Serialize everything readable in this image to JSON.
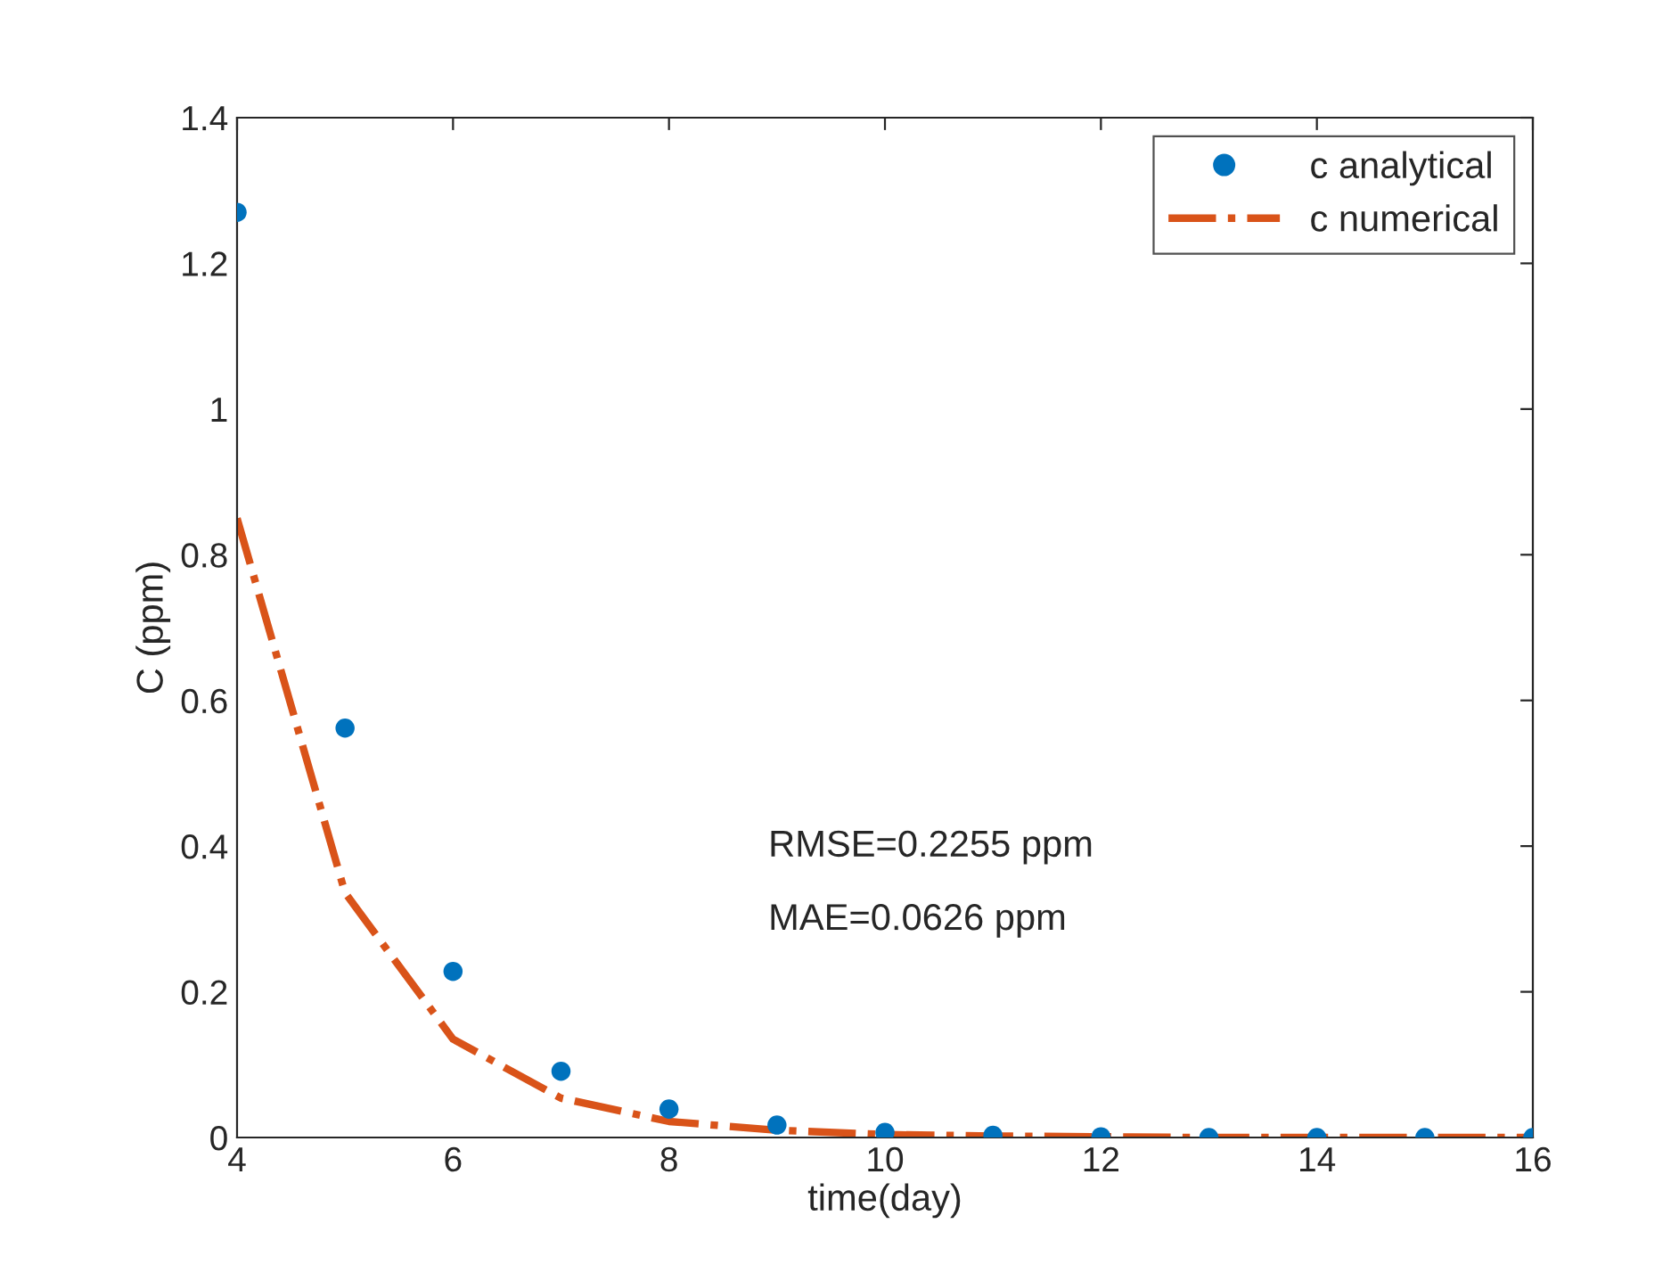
{
  "chart_data": {
    "type": "scatter",
    "xlabel": "time(day)",
    "ylabel": "C (ppm)",
    "x": [
      4,
      5,
      6,
      7,
      8,
      9,
      10,
      11,
      12,
      13,
      14,
      15,
      16
    ],
    "series": [
      {
        "name": "c analytical",
        "color": "#0072bd",
        "marker": "circle",
        "values": [
          1.27,
          0.562,
          0.228,
          0.091,
          0.039,
          0.017,
          0.007,
          0.003,
          0.001,
          0.0,
          0.0,
          0.0,
          0.0
        ]
      },
      {
        "name": "c numerical",
        "type": "line",
        "color": "#d95319",
        "line_style": "dashdot",
        "marker": "none",
        "values": [
          0.85,
          0.336,
          0.135,
          0.054,
          0.022,
          0.01,
          0.004,
          0.002,
          0.001,
          0.0,
          0.0,
          0.0,
          0.0
        ]
      }
    ],
    "xlim": [
      4,
      16
    ],
    "xticks": [
      4,
      6,
      8,
      10,
      12,
      14,
      16
    ],
    "ylim": [
      0,
      1.4
    ],
    "yticks": [
      0,
      0.2,
      0.4,
      0.6,
      0.8,
      1,
      1.2,
      1.4
    ],
    "annotations": [
      "RMSE=0.2255 ppm",
      "MAE=0.0626 ppm"
    ],
    "legend": "top right",
    "grid": false
  }
}
